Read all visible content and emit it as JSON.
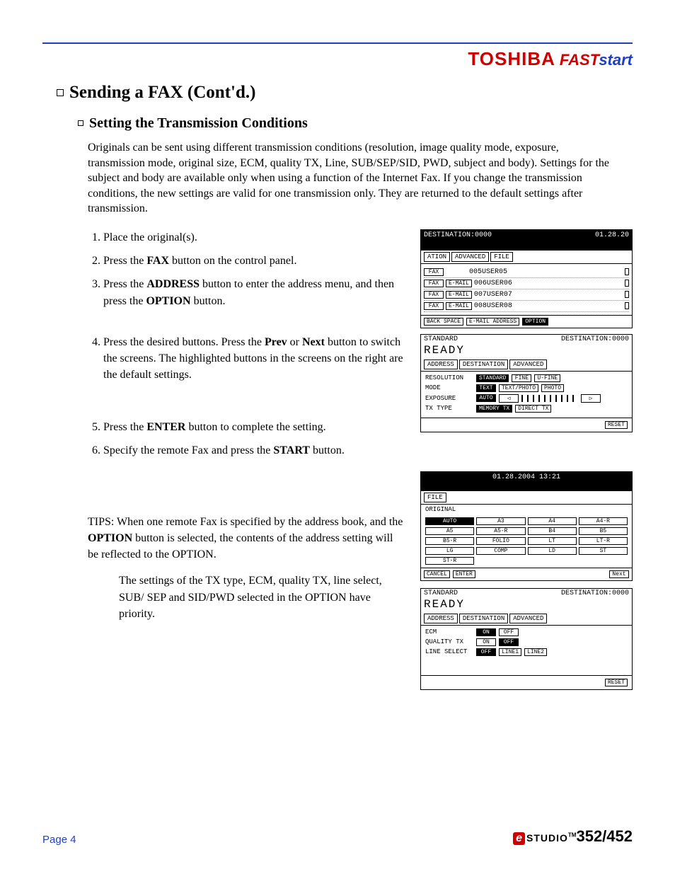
{
  "header": {
    "brand": "TOSHIBA",
    "program_fast": "FAST",
    "program_start": "start"
  },
  "title": "Sending a FAX (Cont'd.)",
  "subtitle": "Setting the Transmission Conditions",
  "intro": "Originals can be sent using different transmission conditions (resolution, image quality mode, exposure, transmission mode, original size, ECM, quality TX, Line, SUB/SEP/SID, PWD, subject and body). Settings for the subject and body are available only when using a function of the Internet Fax. If you change the transmission conditions, the new settings are valid for one transmission only. They are returned to the default settings after transmission.",
  "steps": {
    "s1": "Place the original(s).",
    "s2a": "Press the ",
    "s2b": "FAX",
    "s2c": " button on the control panel.",
    "s3a": "Press the ",
    "s3b": "ADDRESS",
    "s3c": " button to enter the address menu, and then press the ",
    "s3d": "OPTION",
    "s3e": " button.",
    "s4a": "Press the desired buttons. Press the ",
    "s4b": "Prev",
    "s4c": " or ",
    "s4d": "Next",
    "s4e": " button to switch the screens. The highlighted buttons in the screens on the right are the default settings.",
    "s5a": "Press the ",
    "s5b": "ENTER",
    "s5c": " button to complete the setting.",
    "s6a": "Specify the remote Fax and press the ",
    "s6b": "START",
    "s6c": " button."
  },
  "tips": {
    "p1a": "TIPS: When one remote Fax is specified by the address book, and the ",
    "p1b": "OPTION",
    "p1c": " button is selected, the contents of the address setting will be reflected to the OPTION.",
    "p2": "The settings of the TX type, ECM, quality TX, line select, SUB/ SEP and SID/PWD selected in the OPTION have priority."
  },
  "screen1": {
    "dest": "DESTINATION:0000",
    "date": "01.28.20",
    "tabs": {
      "t1": "ATION",
      "t2": "ADVANCED",
      "t3": "FILE"
    },
    "rows": [
      {
        "fax": "FAX",
        "email": "",
        "name": "005USER05"
      },
      {
        "fax": "FAX",
        "email": "E-MAIL",
        "name": "006USER06"
      },
      {
        "fax": "FAX",
        "email": "E-MAIL",
        "name": "007USER07"
      },
      {
        "fax": "FAX",
        "email": "E-MAIL",
        "name": "008USER08"
      }
    ],
    "bottom": {
      "b1": "BACK SPACE",
      "b2": "E-MAIL ADDRESS",
      "b3": "OPTION"
    }
  },
  "screen2": {
    "top_left": "STANDARD",
    "dest": "DESTINATION:0000",
    "ready": "READY",
    "tabs": {
      "t1": "ADDRESS",
      "t2": "DESTINATION",
      "t3": "ADVANCED"
    },
    "lines": {
      "resolution": {
        "lbl": "RESOLUTION",
        "b1": "STANDARD",
        "b2": "FINE",
        "b3": "U-FINE"
      },
      "mode": {
        "lbl": "MODE",
        "b1": "TEXT",
        "b2": "TEXT/PHOTO",
        "b3": "PHOTO"
      },
      "exposure": {
        "lbl": "EXPOSURE",
        "b1": "AUTO",
        "arrowL": "◁",
        "arrowR": "▷"
      },
      "txtype": {
        "lbl": "TX TYPE",
        "b1": "MEMORY TX",
        "b2": "DIRECT TX"
      }
    },
    "reset": "RESET"
  },
  "screen3": {
    "date": "01.28.2004 13:21",
    "tab": "FILE",
    "orig": "ORIGINAL",
    "sizes": [
      "AUTO",
      "A3",
      "A4",
      "A4-R",
      "A5",
      "A5-R",
      "B4",
      "B5",
      "B5-R",
      "FOLIO",
      "LT",
      "LT-R",
      "LG",
      "COMP",
      "LD",
      "ST",
      "ST-R"
    ],
    "cancel": "CANCEL",
    "enter": "ENTER",
    "next": "Next"
  },
  "screen4": {
    "top_left": "STANDARD",
    "dest": "DESTINATION:0000",
    "ready": "READY",
    "tabs": {
      "t1": "ADDRESS",
      "t2": "DESTINATION",
      "t3": "ADVANCED"
    },
    "lines": {
      "ecm": {
        "lbl": "ECM",
        "b1": "ON",
        "b2": "OFF"
      },
      "qtx": {
        "lbl": "QUALITY TX",
        "b1": "ON",
        "b2": "OFF"
      },
      "line": {
        "lbl": "LINE SELECT",
        "b1": "OFF",
        "b2": "LINE1",
        "b3": "LINE2"
      }
    },
    "reset": "RESET"
  },
  "footer": {
    "page": "Page 4",
    "e": "e",
    "studio": "STUDIO",
    "tm": "TM",
    "model": "352/452"
  }
}
